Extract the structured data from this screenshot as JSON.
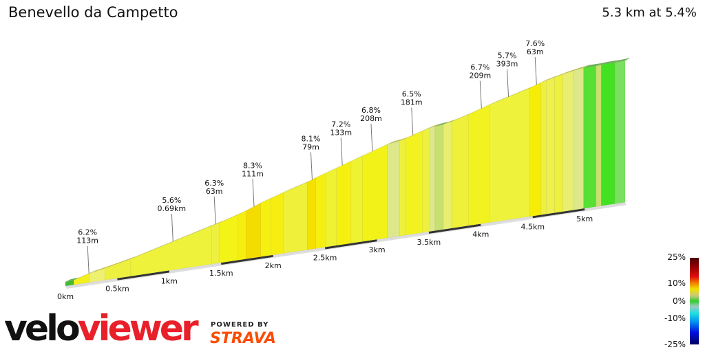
{
  "header": {
    "title": "Benevello da Campetto",
    "summary": "5.3 km at 5.4%"
  },
  "chart_data": {
    "type": "area",
    "title": "Benevello da Campetto",
    "xlabel": "",
    "ylabel": "",
    "x_ticks": [
      "0km",
      "0.5km",
      "1km",
      "1.5km",
      "2km",
      "2.5km",
      "3km",
      "3.5km",
      "4km",
      "4.5km",
      "5km"
    ],
    "x_tick_values": [
      0,
      0.5,
      1,
      1.5,
      2,
      2.5,
      3,
      3.5,
      4,
      4.5,
      5
    ],
    "total_km": 5.3,
    "segments": [
      {
        "km": 0.08,
        "grade": 1,
        "color": "#44bb33"
      },
      {
        "km": 0.15,
        "grade": 6.2,
        "color": "#f3f020"
      },
      {
        "km": 0.15,
        "grade": 4,
        "color": "#eef070"
      },
      {
        "km": 0.25,
        "grade": 4.5,
        "color": "#eef040"
      },
      {
        "km": 0.78,
        "grade": 5.6,
        "color": "#eef23a"
      },
      {
        "km": 0.07,
        "grade": 5,
        "color": "#eef040"
      },
      {
        "km": 0.18,
        "grade": 6.3,
        "color": "#f3f318"
      },
      {
        "km": 0.08,
        "grade": 7,
        "color": "#f5ee10"
      },
      {
        "km": 0.14,
        "grade": 8.3,
        "color": "#f5dc00"
      },
      {
        "km": 0.1,
        "grade": 6.5,
        "color": "#f5f010"
      },
      {
        "km": 0.12,
        "grade": 7,
        "color": "#f5ee10"
      },
      {
        "km": 0.23,
        "grade": 6,
        "color": "#eef03a"
      },
      {
        "km": 0.08,
        "grade": 8.1,
        "color": "#f5e000"
      },
      {
        "km": 0.1,
        "grade": 7,
        "color": "#f5ee10"
      },
      {
        "km": 0.1,
        "grade": 6.5,
        "color": "#eef230"
      },
      {
        "km": 0.14,
        "grade": 7.2,
        "color": "#f5f010"
      },
      {
        "km": 0.11,
        "grade": 6.5,
        "color": "#eef230"
      },
      {
        "km": 0.24,
        "grade": 6.8,
        "color": "#f2f218"
      },
      {
        "km": 0.12,
        "grade": 3,
        "color": "#dde88a"
      },
      {
        "km": 0.05,
        "grade": 5,
        "color": "#eef040"
      },
      {
        "km": 0.17,
        "grade": 6.5,
        "color": "#f2f220"
      },
      {
        "km": 0.07,
        "grade": 5.5,
        "color": "#eef040"
      },
      {
        "km": 0.05,
        "grade": 3,
        "color": "#dde88a"
      },
      {
        "km": 0.08,
        "grade": 2,
        "color": "#c8e070"
      },
      {
        "km": 0.08,
        "grade": 4,
        "color": "#e8ee70"
      },
      {
        "km": 0.16,
        "grade": 6,
        "color": "#eef03a"
      },
      {
        "km": 0.2,
        "grade": 6.7,
        "color": "#f2f220"
      },
      {
        "km": 0.39,
        "grade": 5.7,
        "color": "#eef23a"
      },
      {
        "km": 0.11,
        "grade": 7.6,
        "color": "#f5ec08"
      },
      {
        "km": 0.05,
        "grade": 5,
        "color": "#eef040"
      },
      {
        "km": 0.08,
        "grade": 4.5,
        "color": "#eef050"
      },
      {
        "km": 0.08,
        "grade": 5,
        "color": "#eef040"
      },
      {
        "km": 0.1,
        "grade": 4,
        "color": "#e8ee70"
      },
      {
        "km": 0.1,
        "grade": 3,
        "color": "#dde88a"
      },
      {
        "km": 0.12,
        "grade": 0,
        "color": "#55e033"
      },
      {
        "km": 0.05,
        "grade": 2,
        "color": "#c8e070"
      },
      {
        "km": 0.13,
        "grade": 0,
        "color": "#44e022"
      },
      {
        "km": 0.1,
        "grade": 1,
        "color": "#7ae060"
      }
    ],
    "annotations": [
      {
        "km": 0.2,
        "grade": "6.2%",
        "length": "113m"
      },
      {
        "km": 1.01,
        "grade": "5.6%",
        "length": "0.69km"
      },
      {
        "km": 1.42,
        "grade": "6.3%",
        "length": "63m"
      },
      {
        "km": 1.79,
        "grade": "8.3%",
        "length": "111m"
      },
      {
        "km": 2.35,
        "grade": "8.1%",
        "length": "79m"
      },
      {
        "km": 2.64,
        "grade": "7.2%",
        "length": "133m"
      },
      {
        "km": 2.93,
        "grade": "6.8%",
        "length": "208m"
      },
      {
        "km": 3.32,
        "grade": "6.5%",
        "length": "181m"
      },
      {
        "km": 3.98,
        "grade": "6.7%",
        "length": "209m"
      },
      {
        "km": 4.24,
        "grade": "5.7%",
        "length": "393m"
      },
      {
        "km": 4.51,
        "grade": "7.6%",
        "length": "63m"
      }
    ],
    "legend": {
      "labels": [
        "25%",
        "10%",
        "0%",
        "-10%",
        "-25%"
      ],
      "colors": [
        "#4a0000",
        "#e01010",
        "#f0e000",
        "#30cc30",
        "#20e0e0",
        "#0010e0",
        "#000060"
      ]
    }
  },
  "branding": {
    "logo_part1": "velo",
    "logo_part2": "viewer",
    "powered_by": "POWERED BY",
    "strava": "STRAVA"
  }
}
